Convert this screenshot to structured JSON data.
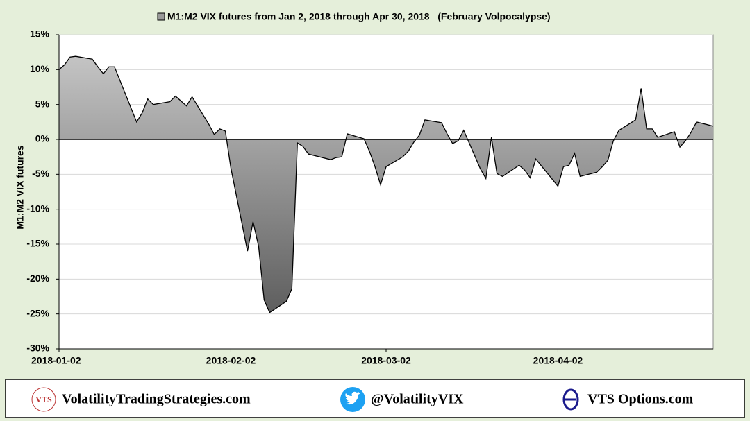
{
  "chart_data": {
    "type": "area",
    "series": [
      {
        "name": "M1:M2 VIX futures from Jan 2, 2018 through Apr 30, 2018   (February Volpocalypse)",
        "color": "#999999",
        "values": [
          10.0,
          10.7,
          11.8,
          11.9,
          11.5,
          10.4,
          9.4,
          10.4,
          10.4,
          2.5,
          3.8,
          5.8,
          5.0,
          5.4,
          6.2,
          5.5,
          4.8,
          6.1,
          2.2,
          0.7,
          1.5,
          1.2,
          -4.1,
          -16.0,
          -11.8,
          -15.3,
          -23.0,
          -24.8,
          -23.2,
          -21.4,
          -0.5,
          -1.0,
          -2.1,
          -2.9,
          -2.6,
          -2.5,
          0.8,
          0.1,
          -1.7,
          -3.9,
          -6.5,
          -3.9,
          -2.5,
          -1.7,
          -0.4,
          0.6,
          2.8,
          2.4,
          0.8,
          -0.6,
          -0.2,
          1.3,
          -4.2,
          -5.6,
          0.3,
          -4.9,
          -5.3,
          -3.7,
          -4.4,
          -5.5,
          -2.8,
          -6.7,
          -3.9,
          -3.7,
          -2.0,
          -5.3,
          -4.7,
          -3.9,
          -3.0,
          -0.2,
          1.3,
          2.8,
          7.3,
          1.5,
          1.5,
          0.3,
          1.1,
          -1.1,
          -0.2,
          1.0,
          2.5,
          1.9
        ]
      }
    ],
    "x": [
      "2018-01-02",
      "2018-01-03",
      "2018-01-04",
      "2018-01-05",
      "2018-01-08",
      "2018-01-09",
      "2018-01-10",
      "2018-01-11",
      "2018-01-12",
      "2018-01-16",
      "2018-01-17",
      "2018-01-18",
      "2018-01-19",
      "2018-01-22",
      "2018-01-23",
      "2018-01-24",
      "2018-01-25",
      "2018-01-26",
      "2018-01-29",
      "2018-01-30",
      "2018-01-31",
      "2018-02-01",
      "2018-02-02",
      "2018-02-05",
      "2018-02-06",
      "2018-02-07",
      "2018-02-08",
      "2018-02-09",
      "2018-02-12",
      "2018-02-13",
      "2018-02-14",
      "2018-02-15",
      "2018-02-16",
      "2018-02-20",
      "2018-02-21",
      "2018-02-22",
      "2018-02-23",
      "2018-02-26",
      "2018-02-27",
      "2018-02-28",
      "2018-03-01",
      "2018-03-02",
      "2018-03-05",
      "2018-03-06",
      "2018-03-07",
      "2018-03-08",
      "2018-03-09",
      "2018-03-12",
      "2018-03-13",
      "2018-03-14",
      "2018-03-15",
      "2018-03-16",
      "2018-03-19",
      "2018-03-20",
      "2018-03-21",
      "2018-03-22",
      "2018-03-23",
      "2018-03-26",
      "2018-03-27",
      "2018-03-28",
      "2018-03-29",
      "2018-04-02",
      "2018-04-03",
      "2018-04-04",
      "2018-04-05",
      "2018-04-06",
      "2018-04-09",
      "2018-04-10",
      "2018-04-11",
      "2018-04-12",
      "2018-04-13",
      "2018-04-16",
      "2018-04-17",
      "2018-04-18",
      "2018-04-19",
      "2018-04-20",
      "2018-04-23",
      "2018-04-24",
      "2018-04-25",
      "2018-04-26",
      "2018-04-27",
      "2018-04-30"
    ],
    "xlim": [
      "2018-01-02",
      "2018-04-30"
    ],
    "xticks": [
      "2018-01-02",
      "2018-02-02",
      "2018-03-02",
      "2018-04-02"
    ],
    "ylabel": "M1:M2 VIX futures",
    "ylim": [
      -30,
      15
    ],
    "yticks": [
      {
        "value": -30,
        "label": "-30%"
      },
      {
        "value": -25,
        "label": "-25%"
      },
      {
        "value": -20,
        "label": "-20%"
      },
      {
        "value": -15,
        "label": "-15%"
      },
      {
        "value": -10,
        "label": "-10%"
      },
      {
        "value": -5,
        "label": "-5%"
      },
      {
        "value": 0,
        "label": "0%"
      },
      {
        "value": 5,
        "label": "5%"
      },
      {
        "value": 10,
        "label": "10%"
      },
      {
        "value": 15,
        "label": "15%"
      }
    ],
    "grid": true
  },
  "footer": {
    "logo": "VTS",
    "site": "VolatilityTradingStrategies.com",
    "twitter": "@VolatilityVIX",
    "options": "VTS Options.com"
  }
}
